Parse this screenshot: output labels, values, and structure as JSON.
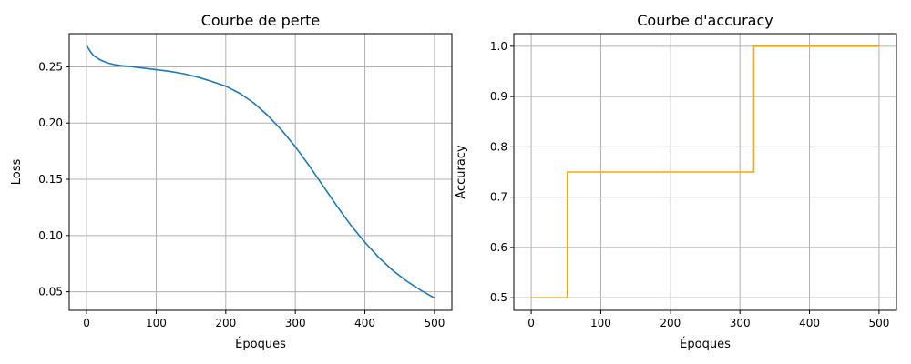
{
  "chart_data": [
    {
      "type": "line",
      "title": "Courbe de perte",
      "xlabel": "Époques",
      "ylabel": "Loss",
      "xlim": [
        -25,
        525
      ],
      "ylim": [
        0.0335,
        0.2795
      ],
      "xticks": [
        0,
        100,
        200,
        300,
        400,
        500
      ],
      "yticks": [
        0.05,
        0.1,
        0.15,
        0.2,
        0.25
      ],
      "grid": true,
      "series": [
        {
          "color": "#1f77b4",
          "x": [
            0,
            5,
            10,
            20,
            30,
            40,
            50,
            60,
            80,
            100,
            120,
            140,
            160,
            180,
            200,
            220,
            240,
            260,
            280,
            300,
            320,
            340,
            360,
            380,
            400,
            420,
            440,
            460,
            480,
            500
          ],
          "y": [
            0.269,
            0.264,
            0.26,
            0.256,
            0.2535,
            0.252,
            0.251,
            0.2505,
            0.249,
            0.2475,
            0.246,
            0.2438,
            0.2408,
            0.237,
            0.2328,
            0.2265,
            0.218,
            0.207,
            0.194,
            0.179,
            0.162,
            0.144,
            0.126,
            0.109,
            0.094,
            0.0805,
            0.069,
            0.0595,
            0.0515,
            0.0445
          ]
        }
      ]
    },
    {
      "type": "line",
      "title": "Courbe d'accuracy",
      "xlabel": "Époques",
      "ylabel": "Accuracy",
      "xlim": [
        -25,
        525
      ],
      "ylim": [
        0.475,
        1.025
      ],
      "xticks": [
        0,
        100,
        200,
        300,
        400,
        500
      ],
      "yticks": [
        0.5,
        0.6,
        0.7,
        0.8,
        0.9,
        1.0
      ],
      "grid": true,
      "series": [
        {
          "color": "#ffa500",
          "step": true,
          "x": [
            0,
            52,
            52,
            320,
            320,
            500
          ],
          "y": [
            0.5,
            0.5,
            0.75,
            0.75,
            1.0,
            1.0
          ]
        }
      ]
    }
  ]
}
